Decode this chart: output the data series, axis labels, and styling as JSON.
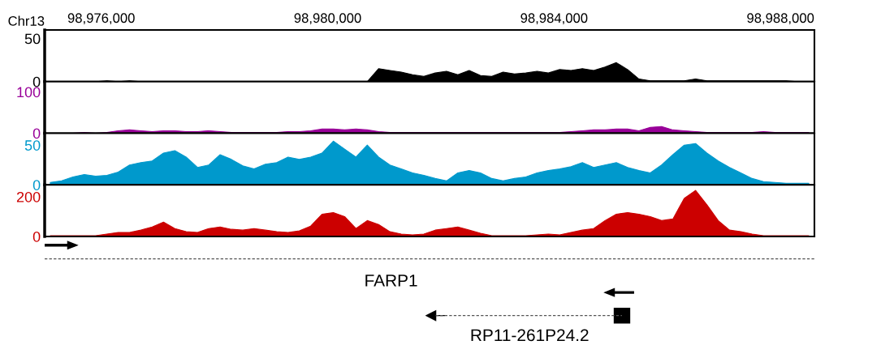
{
  "chart_data": [
    {
      "type": "area",
      "xlabel": "Chr13",
      "x": [
        98975100,
        98975300,
        98975500,
        98975700,
        98975900,
        98976100,
        98976300,
        98976500,
        98976700,
        98976900,
        98977100,
        98977300,
        98977500,
        98977700,
        98977900,
        98978100,
        98978300,
        98978500,
        98978700,
        98978900,
        98979100,
        98979300,
        98979500,
        98979700,
        98979900,
        98980100,
        98980300,
        98980500,
        98980700,
        98980900,
        98981100,
        98981300,
        98981500,
        98981700,
        98981900,
        98982100,
        98982300,
        98982500,
        98982700,
        98982900,
        98983100,
        98983300,
        98983500,
        98983700,
        98983900,
        98984100,
        98984300,
        98984500,
        98984700,
        98984900,
        98985100,
        98985300,
        98985500,
        98985700,
        98985900,
        98986100,
        98986300,
        98986500,
        98986700,
        98986900,
        98987100,
        98987300,
        98987500,
        98987700,
        98987900,
        98988100,
        98988300,
        98988500
      ],
      "xlim": [
        98975000,
        98988600
      ],
      "xticks": [
        {
          "value": 98976000,
          "label": "98,976,000"
        },
        {
          "value": 98980000,
          "label": "98,980,000"
        },
        {
          "value": 98984000,
          "label": "98,984,000"
        },
        {
          "value": 98988000,
          "label": "98,988,000"
        }
      ],
      "ylim": [
        0,
        60
      ],
      "yticks": [
        0,
        50
      ],
      "series": [
        {
          "color": "#000000",
          "values": [
            0,
            0,
            0,
            0,
            0,
            1,
            0,
            1,
            0,
            0,
            0,
            0,
            0,
            0,
            0,
            0,
            0,
            0,
            0,
            0,
            0,
            0,
            0,
            0,
            0,
            0,
            0,
            0,
            0,
            15,
            13,
            11,
            8,
            6,
            10,
            12,
            8,
            13,
            7,
            6,
            11,
            9,
            10,
            12,
            10,
            14,
            13,
            15,
            13,
            17,
            22,
            14,
            3,
            1,
            1,
            1,
            1,
            3,
            1,
            1,
            1,
            1,
            1,
            1,
            1,
            1,
            0,
            0
          ]
        }
      ]
    },
    {
      "type": "area",
      "categories": [
        null,
        null,
        null,
        null,
        null,
        null,
        null,
        null,
        null,
        null,
        null,
        null,
        null,
        null,
        null,
        null,
        null,
        null,
        null,
        null,
        null,
        null,
        null,
        null,
        null,
        null,
        null,
        null,
        null,
        null,
        null,
        null,
        null,
        null,
        null,
        null,
        null,
        null,
        null,
        null,
        null,
        null,
        null,
        null,
        null,
        null,
        null,
        null,
        null,
        null,
        null,
        null,
        null,
        null,
        null,
        null,
        null,
        null,
        null,
        null,
        null,
        null,
        null,
        null,
        null,
        null,
        null,
        null
      ],
      "ylim": [
        0,
        125
      ],
      "yticks": [
        0,
        100
      ],
      "series": [
        {
          "color": "#990099",
          "values": [
            0,
            0,
            0,
            2,
            0,
            2,
            6,
            8,
            6,
            4,
            6,
            6,
            4,
            4,
            6,
            4,
            2,
            2,
            2,
            2,
            2,
            4,
            4,
            6,
            10,
            10,
            8,
            10,
            8,
            4,
            2,
            2,
            2,
            2,
            2,
            2,
            2,
            2,
            2,
            2,
            2,
            2,
            2,
            2,
            2,
            2,
            4,
            6,
            8,
            8,
            10,
            10,
            6,
            14,
            16,
            8,
            6,
            4,
            2,
            2,
            2,
            2,
            2,
            4,
            2,
            2,
            2,
            2
          ]
        }
      ]
    },
    {
      "type": "area",
      "categories": [
        null,
        null,
        null,
        null,
        null,
        null,
        null,
        null,
        null,
        null,
        null,
        null,
        null,
        null,
        null,
        null,
        null,
        null,
        null,
        null,
        null,
        null,
        null,
        null,
        null,
        null,
        null,
        null,
        null,
        null,
        null,
        null,
        null,
        null,
        null,
        null,
        null,
        null,
        null,
        null,
        null,
        null,
        null,
        null,
        null,
        null,
        null,
        null,
        null,
        null,
        null,
        null,
        null,
        null,
        null,
        null,
        null,
        null,
        null,
        null,
        null,
        null,
        null,
        null,
        null,
        null,
        null,
        null
      ],
      "ylim": [
        0,
        65
      ],
      "yticks": [
        0,
        50
      ],
      "series": [
        {
          "color": "#0099cc",
          "values": [
            3,
            5,
            10,
            13,
            11,
            12,
            16,
            25,
            28,
            30,
            40,
            43,
            35,
            22,
            25,
            38,
            32,
            24,
            20,
            26,
            28,
            35,
            32,
            35,
            40,
            55,
            45,
            35,
            50,
            35,
            25,
            20,
            15,
            12,
            8,
            5,
            15,
            18,
            15,
            8,
            5,
            8,
            10,
            15,
            18,
            20,
            23,
            28,
            22,
            25,
            28,
            22,
            18,
            15,
            25,
            38,
            50,
            52,
            40,
            30,
            22,
            15,
            8,
            4,
            3,
            2,
            2,
            2
          ]
        }
      ]
    },
    {
      "type": "area",
      "categories": [
        null,
        null,
        null,
        null,
        null,
        null,
        null,
        null,
        null,
        null,
        null,
        null,
        null,
        null,
        null,
        null,
        null,
        null,
        null,
        null,
        null,
        null,
        null,
        null,
        null,
        null,
        null,
        null,
        null,
        null,
        null,
        null,
        null,
        null,
        null,
        null,
        null,
        null,
        null,
        null,
        null,
        null,
        null,
        null,
        null,
        null,
        null,
        null,
        null,
        null,
        null,
        null,
        null,
        null,
        null,
        null,
        null,
        null,
        null,
        null,
        null,
        null,
        null,
        null,
        null,
        null,
        null,
        null
      ],
      "ylim": [
        0,
        260
      ],
      "yticks": [
        0,
        200
      ],
      "series": [
        {
          "color": "#cc0000",
          "values": [
            4,
            4,
            4,
            4,
            4,
            12,
            20,
            20,
            32,
            48,
            72,
            40,
            24,
            20,
            40,
            48,
            36,
            32,
            40,
            32,
            24,
            20,
            28,
            52,
            112,
            120,
            100,
            40,
            80,
            60,
            24,
            12,
            8,
            12,
            32,
            40,
            48,
            32,
            16,
            4,
            4,
            4,
            4,
            8,
            12,
            8,
            20,
            32,
            40,
            80,
            112,
            120,
            112,
            100,
            80,
            88,
            192,
            232,
            160,
            80,
            32,
            24,
            12,
            4,
            4,
            4,
            4,
            4
          ]
        }
      ],
      "annotations": [
        "FARP1",
        "RP11-261P24.2"
      ]
    }
  ]
}
